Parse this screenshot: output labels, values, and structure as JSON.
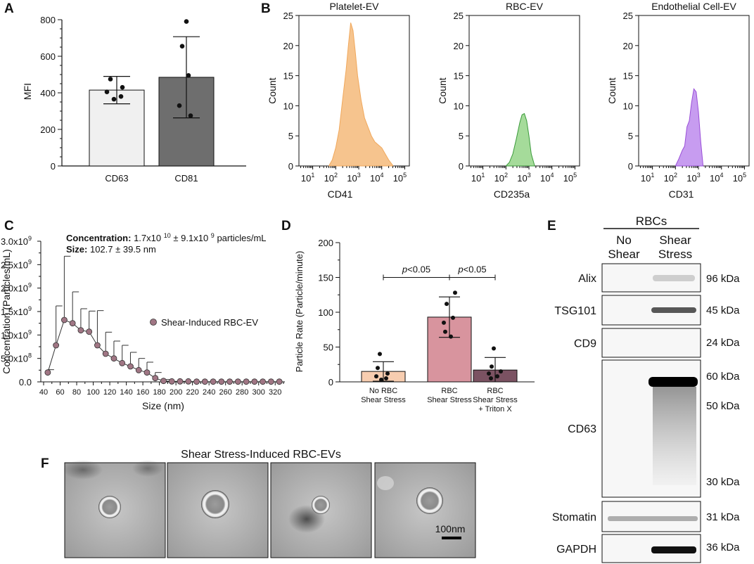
{
  "panel_labels": {
    "A": "A",
    "B": "B",
    "C": "C",
    "D": "D",
    "E": "E",
    "F": "F"
  },
  "chart_data": [
    {
      "id": "A",
      "type": "bar",
      "categories": [
        "CD63",
        "CD81"
      ],
      "values": [
        415,
        485
      ],
      "errors": [
        75,
        222
      ],
      "points": [
        [
          475,
          430,
          405,
          380,
          365
        ],
        [
          790,
          655,
          495,
          330,
          275
        ]
      ],
      "bar_colors": [
        "#f0f0f0",
        "#6e6e6e"
      ],
      "ylabel": "MFI",
      "ylim": [
        0,
        800
      ],
      "yticks": [
        0,
        200,
        400,
        600,
        800
      ]
    },
    {
      "id": "B",
      "type": "area",
      "panels": [
        {
          "title": "Platelet-EV",
          "xlabel": "CD41",
          "ylabel": "Count",
          "color": "#f6c48e",
          "stroke": "#f0a85c",
          "x": [
            1.7,
            1.85,
            2.0,
            2.15,
            2.3,
            2.45,
            2.55,
            2.65,
            2.75,
            2.85,
            2.95,
            3.1,
            3.25,
            3.4,
            3.55,
            3.7,
            3.85,
            4.0,
            4.15,
            4.3,
            4.5
          ],
          "y": [
            0,
            1,
            3,
            6,
            11,
            16,
            20,
            23.8,
            22.5,
            19,
            15,
            11,
            8,
            6.5,
            5,
            4,
            3.5,
            3,
            2,
            1,
            0
          ]
        },
        {
          "title": "RBC-EV",
          "xlabel": "CD235a",
          "ylabel": "Count",
          "color": "#a5db9a",
          "stroke": "#3a9a3a",
          "x": [
            2.0,
            2.15,
            2.3,
            2.45,
            2.6,
            2.7,
            2.8,
            2.9,
            3.0,
            3.1,
            3.25
          ],
          "y": [
            0,
            0.6,
            2,
            4.5,
            7.2,
            8.5,
            8.7,
            7.5,
            5,
            2,
            0
          ]
        },
        {
          "title": "Endothelial Cell-EV",
          "xlabel": "CD31",
          "ylabel": "Count",
          "color": "#c79cf0",
          "stroke": "#9a4fd8",
          "x": [
            2.0,
            2.15,
            2.3,
            2.4,
            2.5,
            2.6,
            2.7,
            2.8,
            2.9,
            3.0,
            3.1,
            3.2
          ],
          "y": [
            0,
            1.2,
            2.6,
            3.3,
            6.5,
            7.5,
            10.5,
            12.8,
            12.3,
            9,
            4,
            0
          ]
        }
      ],
      "ylim": [
        0,
        25
      ],
      "yticks": [
        0,
        5,
        10,
        15,
        20,
        25
      ],
      "xlim_log10": [
        0.4,
        5.2
      ],
      "xtick_base": "10",
      "xtick_exponents": [
        "1",
        "2",
        "3",
        "4",
        "5"
      ]
    },
    {
      "id": "C",
      "type": "line",
      "ylabel": "Concentration (Particles/mL)",
      "xlabel": "Size (nm)",
      "legend": "Shear-Induced RBC-EV",
      "concentration_label": "Concentration:",
      "concentration_mantissa": "1.7x10",
      "concentration_exp": "10",
      "concentration_pm": " ± 9.1x10",
      "concentration_exp2": "9",
      "concentration_unit": " particles/mL",
      "size_label": "Size:",
      "size_value": " 102.7 ± 39.5  nm",
      "xlim": [
        40,
        330
      ],
      "xticks": [
        40,
        60,
        80,
        100,
        120,
        140,
        160,
        180,
        200,
        220,
        240,
        260,
        280,
        300,
        320
      ],
      "ylim": [
        0,
        3000000000.0
      ],
      "ytick_mantissas": [
        "0.0",
        "5.0x10",
        "1.0x10",
        "1.5x10",
        "2.0x10",
        "2.5x10",
        "3.0x10"
      ],
      "ytick_exps": [
        "",
        "8",
        "9",
        "9",
        "9",
        "9",
        "9"
      ],
      "x": [
        45,
        55,
        65,
        75,
        85,
        95,
        105,
        115,
        125,
        135,
        145,
        155,
        165,
        175,
        185,
        195,
        205,
        215,
        225,
        235,
        245,
        255,
        265,
        275,
        285,
        295,
        305,
        315,
        325
      ],
      "y": [
        200000000.0,
        780000000.0,
        1320000000.0,
        1250000000.0,
        1100000000.0,
        1070000000.0,
        780000000.0,
        600000000.0,
        500000000.0,
        400000000.0,
        330000000.0,
        250000000.0,
        200000000.0,
        80000000.0,
        20000000.0,
        10000000.0,
        10000000.0,
        10000000.0,
        5000000.0,
        5000000.0,
        5000000.0,
        5000000.0,
        5000000.0,
        5000000.0,
        5000000.0,
        5000000.0,
        5000000.0,
        5000000.0,
        5000000.0
      ],
      "err": [
        60000000.0,
        840000000.0,
        1360000000.0,
        670000000.0,
        460000000.0,
        440000000.0,
        740000000.0,
        460000000.0,
        370000000.0,
        380000000.0,
        300000000.0,
        250000000.0,
        220000000.0,
        120000000.0,
        30000000.0,
        10000000.0,
        10000000.0,
        10000000.0,
        5000000.0,
        5000000.0,
        5000000.0,
        5000000.0,
        5000000.0,
        5000000.0,
        5000000.0,
        5000000.0,
        5000000.0,
        5000000.0,
        5000000.0
      ],
      "marker_color": "#a07684"
    },
    {
      "id": "D",
      "type": "bar",
      "ylabel": "Particle Rate (Particle/minute)",
      "ylim": [
        0,
        200
      ],
      "yticks": [
        0,
        50,
        100,
        150,
        200
      ],
      "categories": [
        [
          "No RBC",
          "Shear Stress"
        ],
        [
          "RBC",
          "Shear Stress"
        ],
        [
          "RBC",
          "Shear Stress",
          "+ Triton X"
        ]
      ],
      "values": [
        15,
        93,
        17
      ],
      "errors": [
        14,
        29,
        18
      ],
      "points": [
        [
          40,
          20,
          12,
          8,
          5,
          3
        ],
        [
          128,
          112,
          92,
          85,
          72,
          65
        ],
        [
          48,
          22,
          15,
          12,
          8,
          5
        ]
      ],
      "bar_colors": [
        "#f7cdb0",
        "#d8949e",
        "#7b5262"
      ],
      "significance": [
        {
          "text": "<0.05",
          "p": "p"
        },
        {
          "text": "<0.05",
          "p": "p"
        }
      ]
    }
  ],
  "blot": {
    "header": "RBCs",
    "col1_line1": "No",
    "col1_line2": "Shear",
    "col2_line1": "Shear",
    "col2_line2": "Stress",
    "rows": [
      {
        "name": "Alix",
        "kda": [
          "96 kDa"
        ]
      },
      {
        "name": "TSG101",
        "kda": [
          "45 kDa"
        ]
      },
      {
        "name": "CD9",
        "kda": [
          "24 kDa"
        ]
      },
      {
        "name": "CD63",
        "kda": [
          "60 kDa",
          "50 kDa",
          "30 kDa"
        ]
      },
      {
        "name": "Stomatin",
        "kda": [
          "31 kDa"
        ]
      },
      {
        "name": "GAPDH",
        "kda": [
          "36 kDa"
        ]
      }
    ]
  },
  "tem": {
    "title": "Shear Stress-Induced RBC-EVs",
    "scale_bar": "100nm"
  }
}
